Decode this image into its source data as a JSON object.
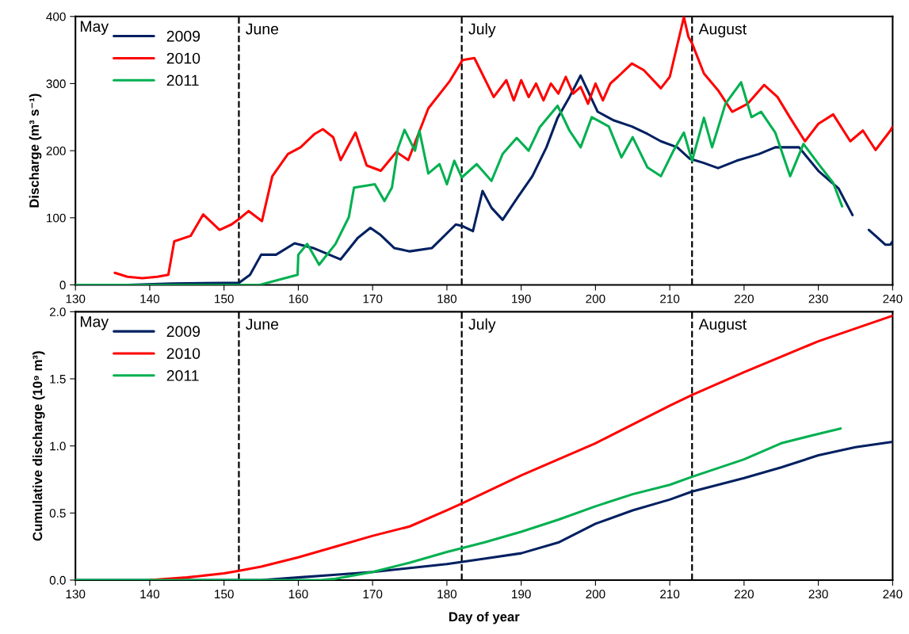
{
  "chart_data": [
    {
      "type": "line",
      "ylabel": "Discharge (m³ s⁻¹)",
      "xlim": [
        130,
        240
      ],
      "xticks": [
        130,
        140,
        150,
        160,
        170,
        180,
        190,
        200,
        210,
        220,
        230,
        240
      ],
      "ylim": [
        0,
        400
      ],
      "yticks": [
        0,
        100,
        200,
        300,
        400
      ],
      "grid": false,
      "legend": "top left",
      "marker": "none",
      "line_style": "solid",
      "annotations": [
        "May"
      ],
      "ref_lines": [
        {
          "axis": "x",
          "value": 152,
          "label": "June",
          "color": "#000000",
          "line_style": "dashed"
        },
        {
          "axis": "x",
          "value": 182,
          "label": "July",
          "color": "#000000",
          "line_style": "dashed"
        },
        {
          "axis": "x",
          "value": 213,
          "label": "August",
          "color": "#000000",
          "line_style": "dashed"
        }
      ],
      "series": [
        {
          "name": "2009",
          "color": "#002060",
          "x": [
            130,
            137,
            143,
            150,
            152,
            153.5,
            155,
            157,
            159.5,
            162,
            165.7,
            168,
            169.7,
            171,
            172.9,
            175,
            178,
            181.2,
            182,
            183.5,
            184.8,
            186,
            187.5,
            189.5,
            191.5,
            193.4,
            194.9,
            196.5,
            198,
            200.3,
            202.5,
            204.9,
            207,
            208.8,
            211,
            212.7,
            214.5,
            216.5,
            219,
            222,
            224.2,
            227.4,
            230,
            232.7,
            234.6,
            235.7,
            236.8,
            238,
            239,
            239.7,
            240
          ],
          "values": [
            0,
            0,
            2,
            3,
            3,
            15,
            45,
            45,
            62,
            55,
            38,
            70,
            85,
            75,
            55,
            50,
            55,
            90,
            88,
            80,
            140,
            115,
            97,
            130,
            162,
            205,
            249,
            280,
            312,
            258,
            245,
            236,
            225,
            214,
            205,
            188,
            182,
            174,
            185,
            195,
            205,
            205,
            170,
            144,
            104,
            null,
            82,
            70,
            60,
            60,
            65
          ]
        },
        {
          "name": "2010",
          "color": "#ff0000",
          "x": [
            135.3,
            137,
            139,
            141,
            142.5,
            143.3,
            145.5,
            147.2,
            149.4,
            151,
            152,
            153.3,
            155.1,
            156.5,
            158.6,
            160.3,
            162.2,
            163.3,
            164.7,
            165.7,
            167.7,
            169.2,
            171.1,
            173.2,
            174.8,
            177.5,
            180.4,
            182.1,
            183.7,
            186.3,
            188,
            189,
            190,
            191,
            192,
            193,
            194,
            195,
            196,
            197,
            198,
            199,
            200,
            201,
            202,
            203,
            204.9,
            206.5,
            208.8,
            210,
            211.9,
            212.5,
            213,
            214.6,
            216.5,
            218.4,
            220.5,
            222.7,
            224.5,
            226.2,
            228.2,
            230,
            232,
            234.3,
            236,
            237.7,
            239.7,
            240
          ],
          "values": [
            18,
            12,
            10,
            12,
            15,
            65,
            73,
            105,
            82,
            90,
            98,
            110,
            95,
            162,
            195,
            205,
            225,
            232,
            220,
            186,
            227,
            178,
            170,
            198,
            186,
            263,
            304,
            335,
            338,
            280,
            305,
            275,
            305,
            280,
            300,
            275,
            300,
            285,
            310,
            285,
            295,
            270,
            300,
            275,
            300,
            310,
            330,
            320,
            293,
            310,
            399,
            370,
            360,
            315,
            290,
            258,
            270,
            298,
            280,
            249,
            214,
            240,
            254,
            214,
            230,
            201,
            230,
            236
          ]
        },
        {
          "name": "2011",
          "color": "#00b050",
          "x": [
            130,
            154.8,
            159.9,
            160,
            161.2,
            162.8,
            165,
            166.8,
            167.5,
            170.3,
            171.6,
            172.6,
            173.4,
            174.3,
            175.7,
            176.3,
            177.5,
            179,
            180,
            181,
            182,
            184,
            186,
            187.5,
            189.4,
            191,
            192.5,
            194.9,
            196.5,
            198,
            199.5,
            201.8,
            203.5,
            205,
            207,
            208.8,
            210.5,
            211.9,
            213,
            214.6,
            215.7,
            217.5,
            219.6,
            221,
            222.3,
            224.2,
            226.2,
            228,
            230.1,
            232,
            233.2
          ],
          "values": [
            0,
            0,
            15,
            45,
            61,
            30,
            61,
            101,
            145,
            150,
            125,
            145,
            203,
            231,
            200,
            230,
            166,
            180,
            150,
            185,
            160,
            180,
            155,
            195,
            219,
            200,
            235,
            267,
            230,
            205,
            250,
            236,
            190,
            220,
            175,
            162,
            200,
            227,
            185,
            249,
            205,
            270,
            302,
            250,
            258,
            227,
            162,
            210,
            179,
            152,
            117
          ]
        }
      ]
    },
    {
      "type": "line",
      "ylabel": "Cumulative discharge (10⁹ m³)",
      "xlabel": "Day of year",
      "xlim": [
        130,
        240
      ],
      "xticks": [
        130,
        140,
        150,
        160,
        170,
        180,
        190,
        200,
        210,
        220,
        230,
        240
      ],
      "ylim": [
        0,
        2
      ],
      "yticks": [
        {
          "value": 0,
          "label": "0.0"
        },
        {
          "value": 0.5,
          "label": "0.5"
        },
        {
          "value": 1,
          "label": "1.0"
        },
        {
          "value": 1.5,
          "label": "1.5"
        },
        {
          "value": 2,
          "label": "2.0"
        }
      ],
      "grid": false,
      "legend": "top left",
      "marker": "none",
      "line_style": "solid",
      "annotations": [
        "May"
      ],
      "ref_lines": [
        {
          "axis": "x",
          "value": 152,
          "label": "June",
          "color": "#000000",
          "line_style": "dashed"
        },
        {
          "axis": "x",
          "value": 182,
          "label": "July",
          "color": "#000000",
          "line_style": "dashed"
        },
        {
          "axis": "x",
          "value": 213,
          "label": "August",
          "color": "#000000",
          "line_style": "dashed"
        }
      ],
      "series": [
        {
          "name": "2009",
          "color": "#002060",
          "x": [
            130,
            155,
            160,
            165,
            170,
            175,
            180,
            185,
            190,
            195,
            200,
            205,
            210,
            213,
            220,
            225,
            230,
            235,
            240
          ],
          "values": [
            0,
            0,
            0.02,
            0.04,
            0.06,
            0.09,
            0.12,
            0.16,
            0.2,
            0.28,
            0.42,
            0.52,
            0.6,
            0.66,
            0.76,
            0.84,
            0.93,
            0.99,
            1.03
          ]
        },
        {
          "name": "2010",
          "color": "#ff0000",
          "x": [
            140,
            145,
            150,
            152,
            155,
            160,
            165,
            170,
            175,
            180,
            182,
            190,
            200,
            210,
            213,
            220,
            230,
            240
          ],
          "values": [
            0,
            0.02,
            0.05,
            0.07,
            0.1,
            0.17,
            0.25,
            0.33,
            0.4,
            0.52,
            0.57,
            0.78,
            1.02,
            1.3,
            1.38,
            1.55,
            1.78,
            1.97
          ]
        },
        {
          "name": "2011",
          "color": "#00b050",
          "x": [
            130,
            163,
            165,
            170,
            175,
            180,
            185,
            190,
            195,
            200,
            205,
            210,
            213,
            220,
            225,
            230,
            233
          ],
          "values": [
            0,
            0,
            0.01,
            0.06,
            0.13,
            0.21,
            0.28,
            0.36,
            0.45,
            0.55,
            0.64,
            0.71,
            0.77,
            0.9,
            1.02,
            1.09,
            1.13
          ]
        }
      ]
    }
  ]
}
